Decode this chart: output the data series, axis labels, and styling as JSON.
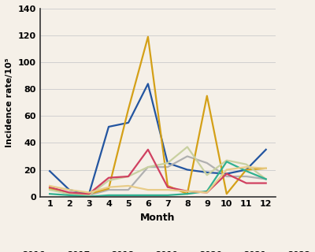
{
  "months": [
    1,
    2,
    3,
    4,
    5,
    6,
    7,
    8,
    9,
    10,
    11,
    12
  ],
  "series": {
    "2016": [
      19,
      5,
      2,
      52,
      55,
      84,
      25,
      20,
      18,
      17,
      20,
      35
    ],
    "2017": [
      7,
      2,
      1,
      5,
      5,
      22,
      22,
      30,
      25,
      15,
      15,
      13
    ],
    "2018": [
      6,
      2,
      2,
      6,
      65,
      119,
      8,
      2,
      75,
      2,
      20,
      21
    ],
    "2019": [
      5,
      2,
      1,
      12,
      15,
      22,
      25,
      37,
      16,
      27,
      24,
      13
    ],
    "2020": [
      2,
      1,
      0,
      1,
      1,
      1,
      1,
      2,
      4,
      26,
      19,
      13
    ],
    "2021": [
      7,
      3,
      2,
      14,
      15,
      35,
      7,
      4,
      3,
      17,
      10,
      10
    ],
    "2022": [
      8,
      5,
      3,
      7,
      8,
      5,
      5,
      4,
      3,
      20,
      22,
      21
    ]
  },
  "colors": {
    "2016": "#2355a0",
    "2017": "#b0b0b0",
    "2018": "#d4a017",
    "2019": "#c8d0a0",
    "2020": "#30b090",
    "2021": "#d04060",
    "2022": "#e8cc88"
  },
  "ylim": [
    0,
    140
  ],
  "yticks": [
    0,
    20,
    40,
    60,
    80,
    100,
    120,
    140
  ],
  "ylabel": "Incidence rate/10⁵",
  "xlabel": "Month",
  "background_color": "#f5f0e8",
  "linewidth": 1.6
}
